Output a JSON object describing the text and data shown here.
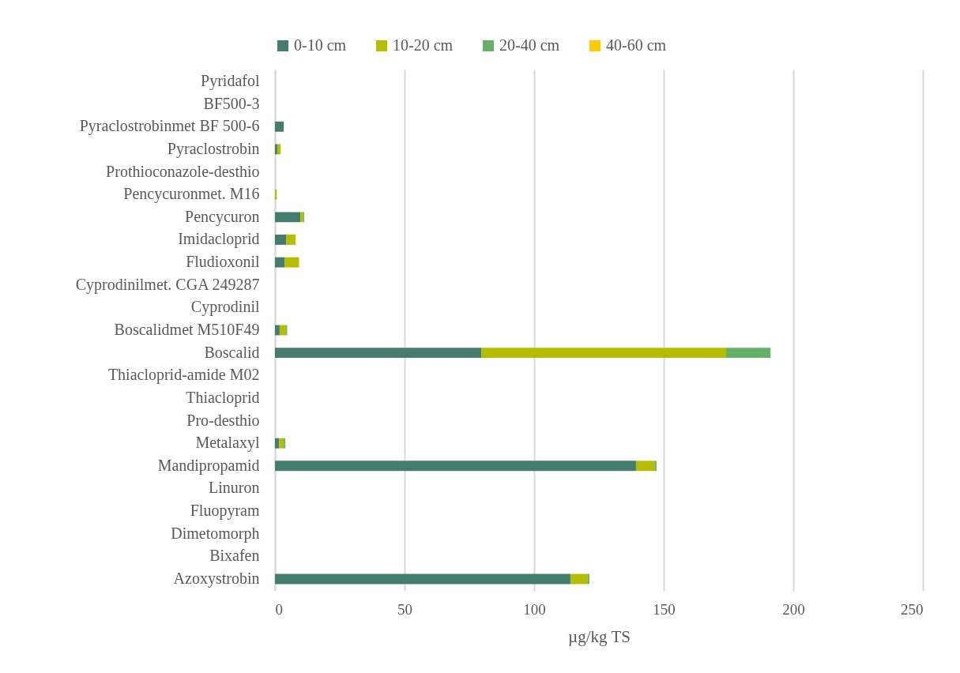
{
  "chart_data": {
    "type": "bar",
    "orientation": "horizontal",
    "stacked": true,
    "categories": [
      "Pyridafol",
      "BF500-3",
      "Pyraclostrobinmet BF 500-6",
      "Pyraclostrobin",
      "Prothioconazole-desthio",
      "Pencycuronmet. M16",
      "Pencycuron",
      "Imidacloprid",
      "Fludioxonil",
      "Cyprodinilmet. CGA 249287",
      "Cyprodinil",
      "Boscalidmet M510F49",
      "Boscalid",
      "Thiacloprid-amide M02",
      "Thiacloprid",
      "Pro-desthio",
      "Metalaxyl",
      "Mandipropamid",
      "Linuron",
      "Fluopyram",
      "Dimetomorph",
      "Bixafen",
      "Azoxystrobin"
    ],
    "series": [
      {
        "name": "0-10 cm",
        "color": "#467c70",
        "values": [
          0,
          0,
          3.4,
          0.9,
          0,
          0,
          9.8,
          4.3,
          3.7,
          0,
          0,
          1.8,
          79.6,
          0,
          0,
          0,
          1.6,
          139.3,
          0,
          0,
          0,
          0,
          114
        ]
      },
      {
        "name": "10-20 cm",
        "color": "#b5bd00",
        "values": [
          0,
          0,
          0,
          1.3,
          0,
          0.7,
          1.1,
          3.7,
          5.6,
          0,
          0,
          2.5,
          94.5,
          0,
          0,
          0,
          1.8,
          7.3,
          0,
          0,
          0,
          0,
          6.7
        ]
      },
      {
        "name": "20-40 cm",
        "color": "#64b06a",
        "values": [
          0,
          0,
          0,
          0,
          0,
          0,
          0.4,
          0,
          0,
          0,
          0,
          0.4,
          17.1,
          0,
          0,
          0,
          0.6,
          0.6,
          0,
          0,
          0,
          0,
          0.6
        ]
      },
      {
        "name": "40-60 cm",
        "color": "#ffcc00",
        "values": [
          0,
          0,
          0,
          0,
          0,
          0,
          0,
          0,
          0,
          0,
          0,
          0,
          0,
          0,
          0,
          0,
          0,
          0,
          0,
          0,
          0,
          0,
          0
        ]
      }
    ],
    "xlim": [
      0,
      250
    ],
    "xticks": [
      0,
      50,
      100,
      150,
      200,
      250
    ],
    "xlabel": "µg/kg TS",
    "grid": "x",
    "legend": "top"
  }
}
